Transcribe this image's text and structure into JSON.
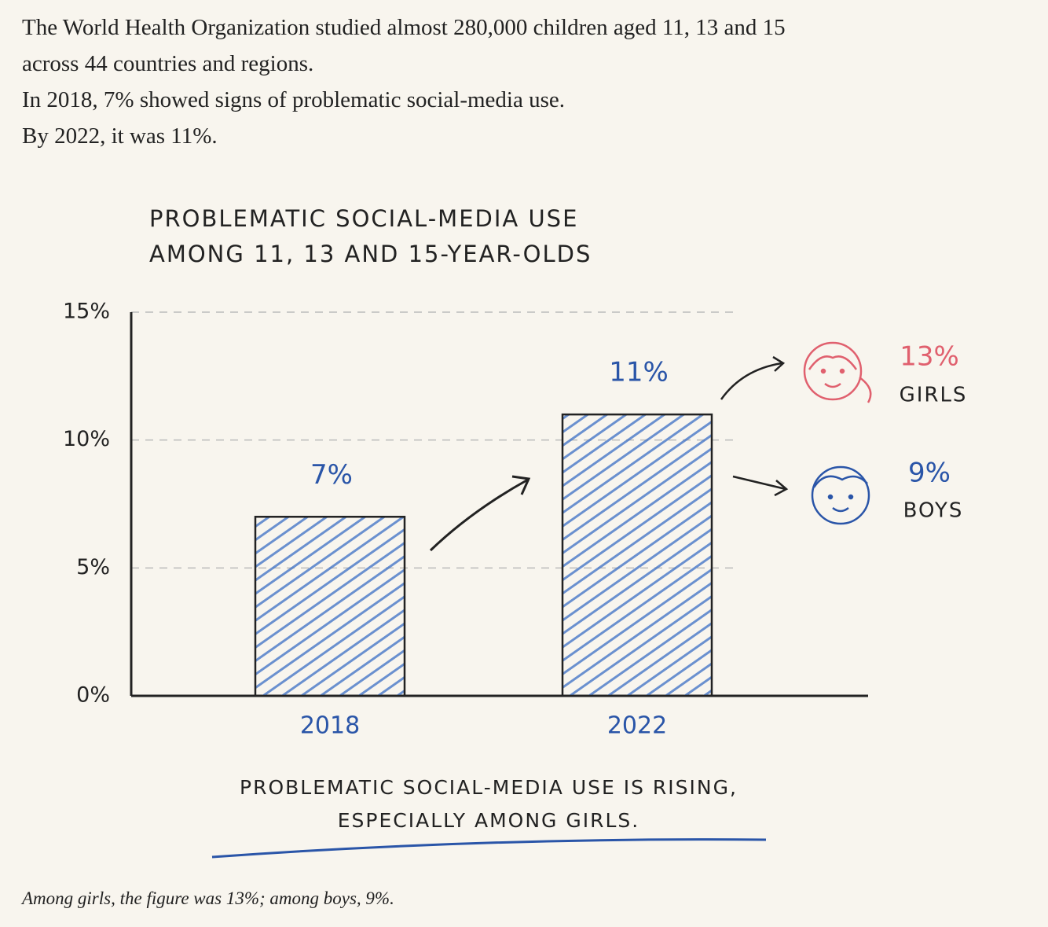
{
  "intro": [
    "The World Health Organization studied almost 280,000 children aged 11, 13 and 15",
    "across 44 countries and regions.",
    "In 2018, 7% showed signs of problematic social-media use.",
    "By 2022, it was 11%."
  ],
  "chart_data": {
    "type": "bar",
    "title": [
      "PROBLEMATIC SOCIAL-MEDIA USE",
      "AMONG 11, 13 AND 15-YEAR-OLDS"
    ],
    "categories": [
      "2018",
      "2022"
    ],
    "values": [
      7,
      11
    ],
    "value_labels": [
      "7%",
      "11%"
    ],
    "color": "#3a6fc4",
    "ylim": [
      0,
      15
    ],
    "yticks": [
      {
        "value": 0,
        "label": "0%"
      },
      {
        "value": 5,
        "label": "5%"
      },
      {
        "value": 10,
        "label": "10%"
      },
      {
        "value": 15,
        "label": "15%"
      }
    ],
    "grid": true,
    "breakdown": [
      {
        "label": "13%",
        "name": "GIRLS",
        "color": "#e0606e"
      },
      {
        "label": "9%",
        "name": "BOYS",
        "color": "#2a55a8"
      }
    ],
    "conclusion": [
      "PROBLEMATIC SOCIAL-MEDIA USE IS RISING,",
      "ESPECIALLY AMONG GIRLS."
    ]
  },
  "caption": "Among girls, the figure was 13%; among boys, 9%."
}
